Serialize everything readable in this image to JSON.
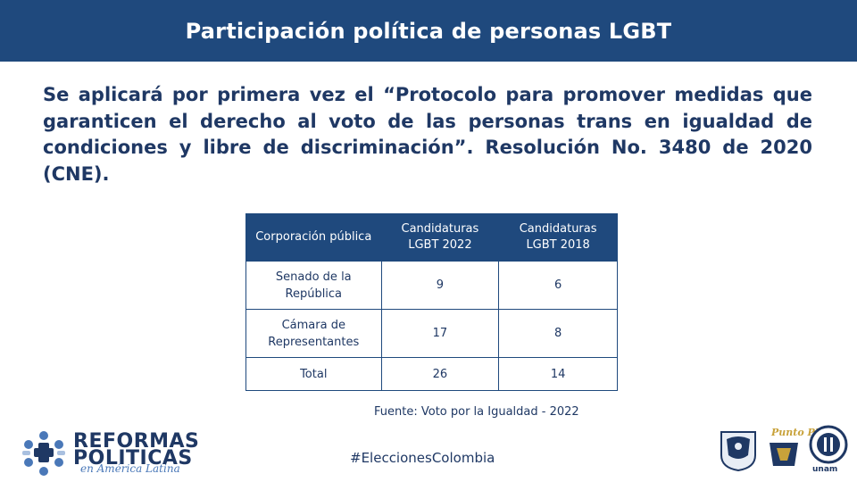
{
  "header": {
    "title": "Participación política de personas LGBT"
  },
  "lead": "Se aplicará por primera vez el “Protocolo para promover medidas que garanticen el derecho al voto de las personas trans en igualdad de condiciones y libre de discriminación”. Resolución No. 3480 de 2020 (CNE).",
  "table": {
    "headers": [
      "Corporación pública",
      "Candidaturas LGBT 2022",
      "Candidaturas LGBT 2018"
    ],
    "rows": [
      {
        "label": "Senado de la República",
        "v2022": "9",
        "v2018": "6"
      },
      {
        "label": "Cámara de Representantes",
        "v2022": "17",
        "v2018": "8"
      },
      {
        "label": "Total",
        "v2022": "26",
        "v2018": "14"
      }
    ]
  },
  "source": "Fuente: Voto por la Igualdad - 2022",
  "hashtag": "#EleccionesColombia",
  "logos": {
    "reformas_line1": "REFORMAS",
    "reformas_line2": "POLITICAS",
    "reformas_line3": "en América Latina",
    "puma": "Punto PUMA",
    "unam": "unam"
  },
  "colors": {
    "header_bg": "#1f497d",
    "text": "#1f3864",
    "accent": "#4a78b8"
  }
}
